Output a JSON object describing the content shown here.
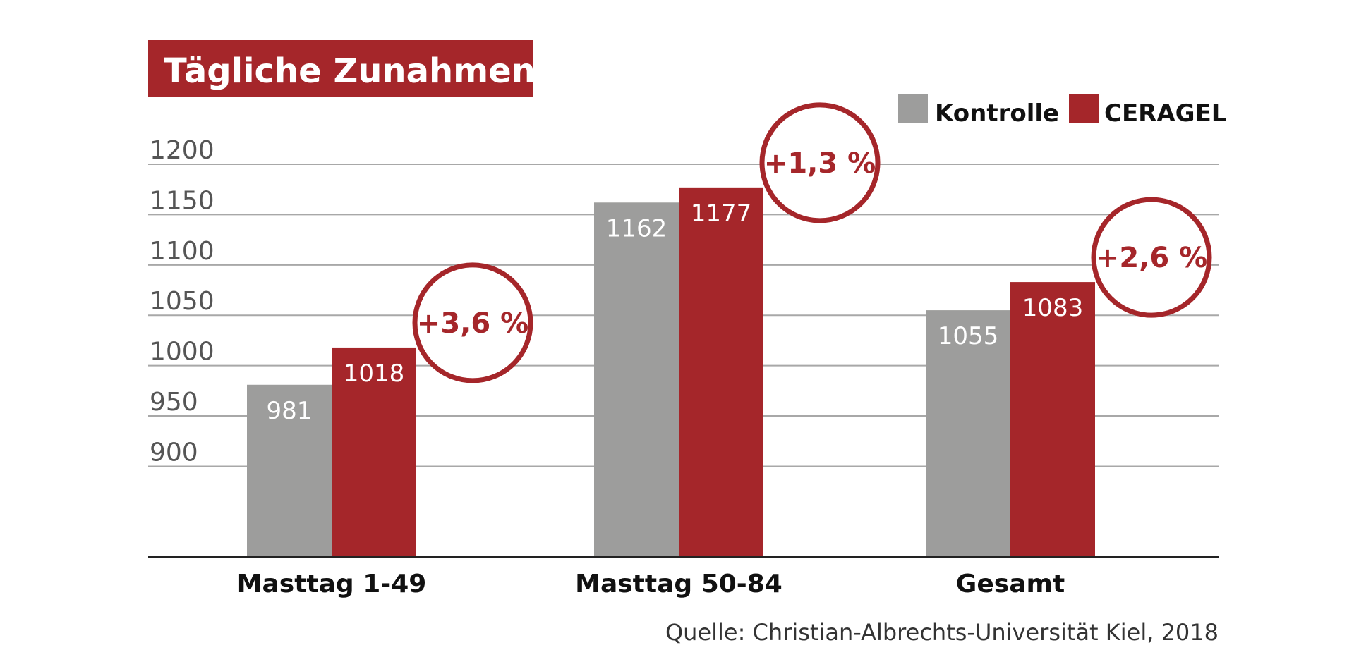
{
  "chart_data": {
    "type": "bar",
    "title": "Tägliche Zunahmen, g",
    "categories": [
      "Masttag 1-49",
      "Masttag 50-84",
      "Gesamt"
    ],
    "series": [
      {
        "name": "Kontrolle",
        "color": "#9d9d9c",
        "values": [
          981,
          1162,
          1055
        ]
      },
      {
        "name": "CERAGEL",
        "color": "#a5262a",
        "values": [
          1018,
          1177,
          1083
        ]
      }
    ],
    "value_labels": {
      "Kontrolle": [
        "981",
        "1162",
        "1055"
      ],
      "CERAGEL": [
        "1018",
        "1177",
        "1083"
      ]
    },
    "badges": [
      "+3,6 %",
      "+1,3 %",
      "+2,6 %"
    ],
    "yticks": [
      "900",
      "950",
      "1000",
      "1050",
      "1100",
      "1150",
      "1200"
    ],
    "yticks_values": [
      900,
      950,
      1000,
      1050,
      1100,
      1150,
      1200
    ],
    "ylim": [
      810,
      1200
    ],
    "grid": true,
    "legend_position": "top-right",
    "source": "Quelle: Christian-Albrechts-Universität Kiel, 2018"
  }
}
